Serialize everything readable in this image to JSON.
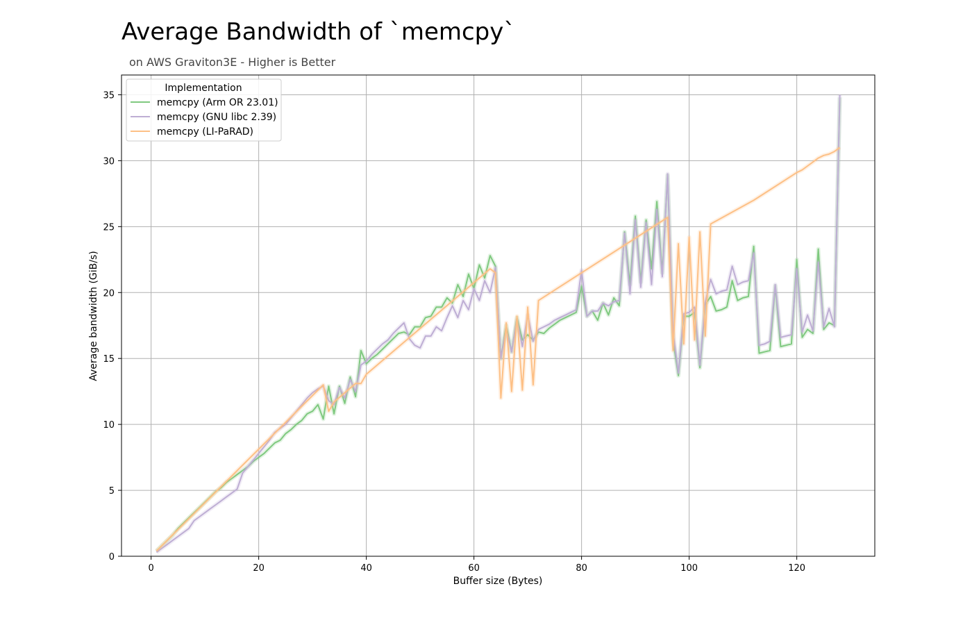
{
  "chart_data": {
    "type": "line",
    "title": "Average Bandwidth of `memcpy`",
    "subtitle": "on AWS Graviton3E - Higher is Better",
    "xlabel": "Buffer size (Bytes)",
    "ylabel": "Average bandwidth (GiB/s)",
    "xlim": [
      -5.5,
      134.5
    ],
    "ylim": [
      0,
      36.5
    ],
    "xticks": [
      0,
      20,
      40,
      60,
      80,
      100,
      120
    ],
    "yticks": [
      0,
      5,
      10,
      15,
      20,
      25,
      30,
      35
    ],
    "grid": true,
    "legend": {
      "title": "Implementation",
      "placement": "top-left"
    },
    "series": [
      {
        "name": "memcpy (Arm OR 23.01)",
        "color": "#7fc97f",
        "x": [
          1,
          2,
          3,
          4,
          5,
          6,
          7,
          8,
          9,
          10,
          11,
          12,
          13,
          14,
          15,
          16,
          17,
          18,
          19,
          20,
          21,
          22,
          23,
          24,
          25,
          26,
          27,
          28,
          29,
          30,
          31,
          32,
          33,
          34,
          35,
          36,
          37,
          38,
          39,
          40,
          41,
          42,
          43,
          44,
          45,
          46,
          47,
          48,
          49,
          50,
          51,
          52,
          53,
          54,
          55,
          56,
          57,
          58,
          59,
          60,
          61,
          62,
          63,
          64,
          65,
          66,
          67,
          68,
          69,
          70,
          71,
          72,
          73,
          74,
          75,
          76,
          77,
          78,
          79,
          80,
          81,
          82,
          83,
          84,
          85,
          86,
          87,
          88,
          89,
          90,
          91,
          92,
          93,
          94,
          95,
          96,
          97,
          98,
          99,
          100,
          101,
          102,
          103,
          104,
          105,
          106,
          107,
          108,
          109,
          110,
          111,
          112,
          113,
          114,
          115,
          116,
          117,
          118,
          119,
          120,
          121,
          122,
          123,
          124,
          125,
          126,
          127,
          128
        ],
        "y": [
          0.4,
          0.8,
          1.2,
          1.6,
          2.1,
          2.5,
          2.9,
          3.3,
          3.7,
          4.1,
          4.5,
          4.9,
          5.2,
          5.6,
          5.9,
          6.2,
          6.5,
          6.8,
          7.2,
          7.5,
          7.8,
          8.2,
          8.6,
          8.8,
          9.3,
          9.6,
          10.0,
          10.3,
          10.8,
          11.0,
          11.5,
          10.4,
          12.9,
          10.8,
          12.9,
          11.6,
          13.6,
          12.1,
          15.6,
          14.6,
          15.0,
          15.3,
          15.7,
          16.1,
          16.5,
          16.9,
          17.0,
          16.8,
          17.4,
          17.4,
          18.1,
          18.2,
          18.9,
          18.9,
          19.6,
          19.2,
          20.6,
          19.7,
          21.4,
          20.3,
          22.1,
          21.1,
          22.8,
          22.0,
          15.0,
          17.5,
          15.5,
          18.1,
          16.4,
          16.8,
          16.4,
          17.0,
          16.9,
          17.3,
          17.6,
          17.9,
          18.1,
          18.3,
          18.5,
          20.5,
          18.2,
          18.6,
          17.9,
          19.2,
          18.3,
          19.6,
          19.0,
          24.6,
          20.6,
          25.8,
          20.8,
          25.5,
          21.8,
          26.9,
          21.5,
          28.9,
          16.4,
          13.7,
          18.2,
          18.2,
          18.5,
          14.3,
          19.1,
          19.7,
          18.6,
          18.7,
          18.9,
          20.9,
          19.4,
          19.6,
          19.7,
          23.5,
          15.4,
          15.5,
          15.6,
          20.5,
          15.9,
          16.0,
          16.1,
          22.5,
          16.6,
          17.2,
          16.9,
          23.3,
          17.2,
          17.7,
          17.5,
          34.8
        ]
      },
      {
        "name": "memcpy (GNU libc 2.39)",
        "color": "#beaed4",
        "x": [
          1,
          2,
          3,
          4,
          5,
          6,
          7,
          8,
          9,
          10,
          11,
          12,
          13,
          14,
          15,
          16,
          17,
          18,
          19,
          20,
          21,
          22,
          23,
          24,
          25,
          26,
          27,
          28,
          29,
          30,
          31,
          32,
          33,
          34,
          35,
          36,
          37,
          38,
          39,
          40,
          41,
          42,
          43,
          44,
          45,
          46,
          47,
          48,
          49,
          50,
          51,
          52,
          53,
          54,
          55,
          56,
          57,
          58,
          59,
          60,
          61,
          62,
          63,
          64,
          65,
          66,
          67,
          68,
          69,
          70,
          71,
          72,
          73,
          74,
          75,
          76,
          77,
          78,
          79,
          80,
          81,
          82,
          83,
          84,
          85,
          86,
          87,
          88,
          89,
          90,
          91,
          92,
          93,
          94,
          95,
          96,
          97,
          98,
          99,
          100,
          101,
          102,
          103,
          104,
          105,
          106,
          107,
          108,
          109,
          110,
          111,
          112,
          113,
          114,
          115,
          116,
          117,
          118,
          119,
          120,
          121,
          122,
          123,
          124,
          125,
          126,
          127,
          128
        ],
        "y": [
          0.3,
          0.6,
          0.9,
          1.2,
          1.5,
          1.8,
          2.1,
          2.7,
          3.0,
          3.3,
          3.6,
          3.9,
          4.2,
          4.5,
          4.8,
          5.1,
          6.3,
          6.8,
          7.3,
          7.8,
          8.3,
          8.8,
          9.4,
          9.7,
          10.0,
          10.5,
          11.0,
          11.5,
          12.0,
          12.4,
          12.7,
          12.9,
          11.8,
          11.5,
          12.8,
          12.0,
          13.4,
          12.5,
          14.5,
          14.8,
          15.3,
          15.7,
          16.1,
          16.4,
          16.9,
          17.3,
          17.7,
          16.5,
          16.0,
          15.8,
          16.7,
          16.7,
          17.4,
          17.1,
          18.1,
          19.0,
          18.1,
          19.4,
          18.7,
          20.3,
          19.4,
          20.9,
          20.0,
          21.9,
          15.0,
          17.2,
          15.5,
          17.9,
          15.9,
          18.3,
          16.3,
          17.2,
          17.4,
          17.6,
          17.9,
          18.1,
          18.3,
          18.5,
          18.7,
          21.7,
          18.2,
          18.6,
          18.6,
          19.2,
          19.0,
          19.3,
          19.4,
          24.5,
          19.9,
          25.5,
          20.4,
          25.3,
          20.6,
          26.3,
          21.2,
          29.0,
          17.0,
          13.9,
          18.4,
          18.5,
          18.9,
          14.5,
          19.3,
          21.0,
          19.9,
          20.1,
          20.2,
          22.0,
          20.6,
          20.8,
          20.9,
          23.0,
          16.0,
          16.1,
          16.3,
          20.6,
          16.6,
          16.7,
          16.8,
          21.8,
          17.0,
          18.3,
          17.1,
          22.3,
          17.4,
          18.8,
          17.4,
          35.0
        ]
      },
      {
        "name": "memcpy (LI-PaRAD)",
        "color": "#fdc086",
        "x": [
          1,
          32,
          33,
          34,
          38,
          39,
          40,
          63,
          64,
          65,
          66,
          67,
          68,
          69,
          70,
          71,
          72,
          96,
          97,
          98,
          99,
          100,
          101,
          102,
          103,
          104,
          112,
          120,
          121,
          122,
          123,
          124,
          125,
          126,
          127,
          128
        ],
        "y": [
          0.4,
          13.0,
          11.0,
          11.7,
          13.1,
          13.1,
          13.8,
          21.8,
          21.5,
          12.0,
          17.7,
          12.5,
          18.2,
          12.6,
          18.9,
          13.0,
          19.4,
          25.7,
          15.6,
          23.7,
          16.1,
          24.2,
          16.4,
          24.6,
          16.7,
          25.2,
          27.0,
          29.1,
          29.3,
          29.6,
          29.9,
          30.2,
          30.4,
          30.5,
          30.7,
          31.0
        ]
      }
    ]
  }
}
